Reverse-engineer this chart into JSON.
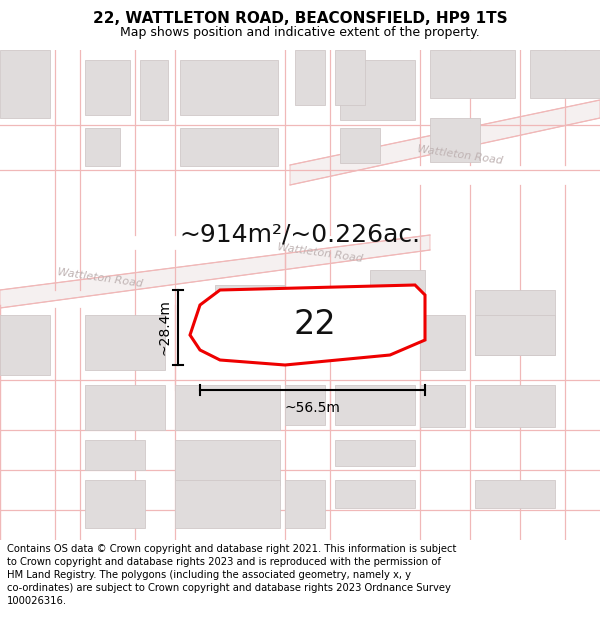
{
  "title": "22, WATTLETON ROAD, BEACONSFIELD, HP9 1TS",
  "subtitle": "Map shows position and indicative extent of the property.",
  "area_label": "~914m²/~0.226ac.",
  "number_label": "22",
  "dim_width_label": "~56.5m",
  "dim_height_label": "~28.4m",
  "road_label": "Wattleton Road",
  "copyright_text": "Contains OS data © Crown copyright and database right 2021. This information is subject to Crown copyright and database rights 2023 and is reproduced with the permission of HM Land Registry. The polygons (including the associated geometry, namely x, y co-ordinates) are subject to Crown copyright and database rights 2023 Ordnance Survey 100026316.",
  "map_bg": "#faf9f9",
  "road_line_color": "#f0b8b8",
  "road_fill_color": "#f5f0f0",
  "building_color": "#e0dcdc",
  "building_edge": "#d0c8c8",
  "property_line_color": "#ee0000",
  "road_text_color": "#c0b4b4",
  "text_color": "#111111",
  "title_fontsize": 11,
  "subtitle_fontsize": 9,
  "area_fontsize": 18,
  "number_fontsize": 24,
  "dim_fontsize": 10,
  "road_fontsize": 8,
  "copyright_fontsize": 7.2
}
